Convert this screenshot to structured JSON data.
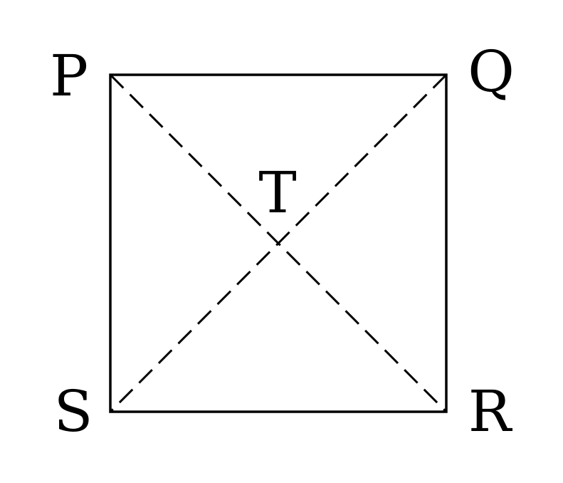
{
  "diagram": {
    "stroke_color": "#000000",
    "background_color": "#ffffff",
    "vertices": {
      "top_left": "P",
      "top_right": "Q",
      "bottom_right": "R",
      "bottom_left": "S"
    },
    "intersection": "T"
  }
}
